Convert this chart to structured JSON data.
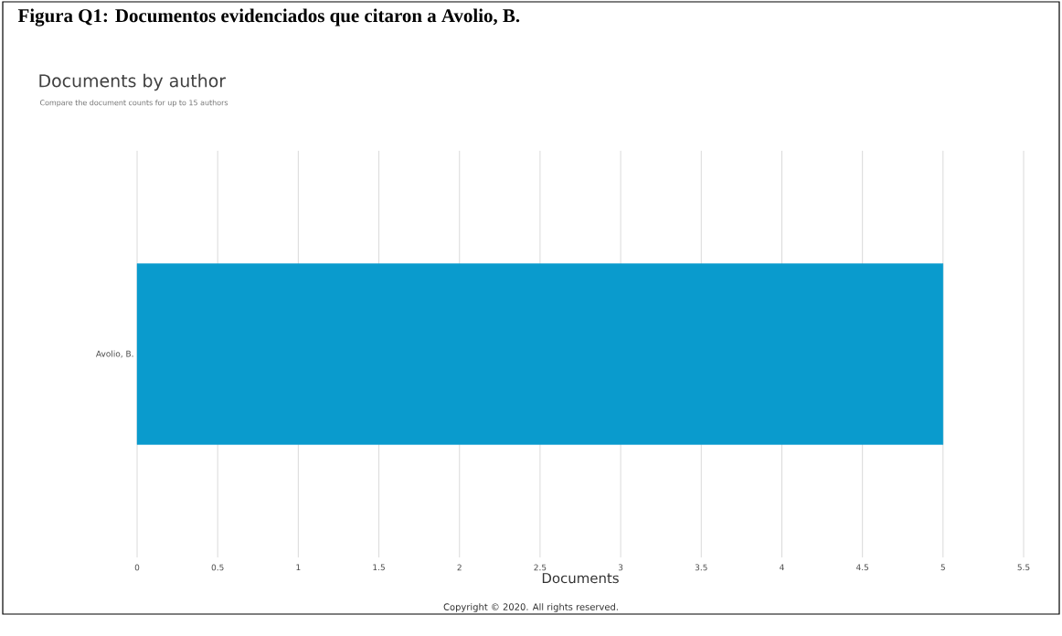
{
  "chart_data": {
    "type": "bar",
    "orientation": "horizontal",
    "title": "Figura Q1: Documentos evidenciados que citaron a Avolio, B.",
    "subtitle": "Documents by author",
    "annotations": [
      "Compare the document counts for up to 15 authors",
      "Copyright © 2020. All rights reserved."
    ],
    "categories": [
      "Avolio, B."
    ],
    "values": [
      5
    ],
    "color": "#0a9bcd",
    "xlabel": "Documents",
    "xlim": [
      0,
      5.5
    ],
    "xticks": [
      0,
      0.5,
      1,
      1.5,
      2,
      2.5,
      3,
      3.5,
      4,
      4.5,
      5,
      5.5
    ],
    "grid": "x"
  }
}
